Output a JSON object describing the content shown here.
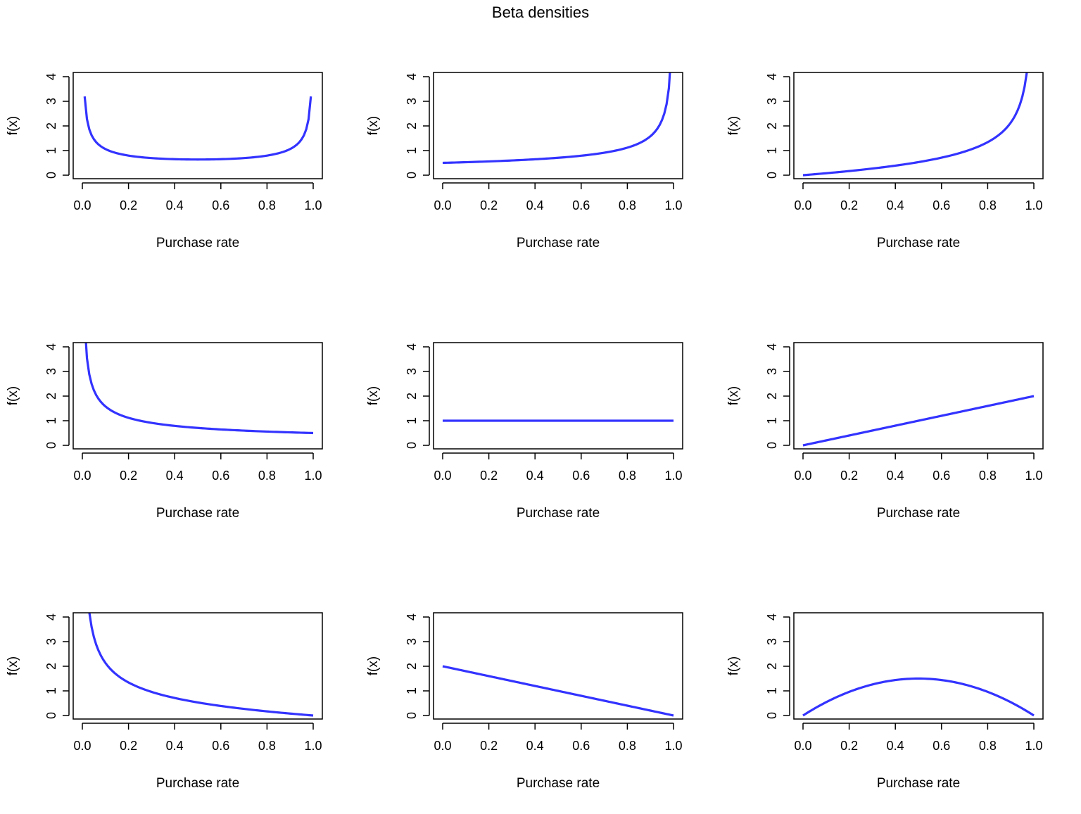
{
  "title": "Beta densities",
  "chart_data": [
    {
      "type": "line",
      "alpha": 0.5,
      "beta": 0.5,
      "xlabel": "Purchase rate",
      "ylabel": "f(x)",
      "xlim": [
        0,
        1
      ],
      "ylim": [
        0,
        4
      ],
      "xticks": [
        "0.0",
        "0.2",
        "0.4",
        "0.6",
        "0.8",
        "1.0"
      ],
      "yticks": [
        "0",
        "1",
        "2",
        "3",
        "4"
      ],
      "x_step": 0.01
    },
    {
      "type": "line",
      "alpha": 1,
      "beta": 0.5,
      "xlabel": "Purchase rate",
      "ylabel": "f(x)",
      "xlim": [
        0,
        1
      ],
      "ylim": [
        0,
        4
      ],
      "xticks": [
        "0.0",
        "0.2",
        "0.4",
        "0.6",
        "0.8",
        "1.0"
      ],
      "yticks": [
        "0",
        "1",
        "2",
        "3",
        "4"
      ],
      "x_step": 0.01
    },
    {
      "type": "line",
      "alpha": 2,
      "beta": 0.5,
      "xlabel": "Purchase rate",
      "ylabel": "f(x)",
      "xlim": [
        0,
        1
      ],
      "ylim": [
        0,
        4
      ],
      "xticks": [
        "0.0",
        "0.2",
        "0.4",
        "0.6",
        "0.8",
        "1.0"
      ],
      "yticks": [
        "0",
        "1",
        "2",
        "3",
        "4"
      ],
      "x_step": 0.01
    },
    {
      "type": "line",
      "alpha": 0.5,
      "beta": 1,
      "xlabel": "Purchase rate",
      "ylabel": "f(x)",
      "xlim": [
        0,
        1
      ],
      "ylim": [
        0,
        4
      ],
      "xticks": [
        "0.0",
        "0.2",
        "0.4",
        "0.6",
        "0.8",
        "1.0"
      ],
      "yticks": [
        "0",
        "1",
        "2",
        "3",
        "4"
      ],
      "x_step": 0.01
    },
    {
      "type": "line",
      "alpha": 1,
      "beta": 1,
      "xlabel": "Purchase rate",
      "ylabel": "f(x)",
      "xlim": [
        0,
        1
      ],
      "ylim": [
        0,
        4
      ],
      "xticks": [
        "0.0",
        "0.2",
        "0.4",
        "0.6",
        "0.8",
        "1.0"
      ],
      "yticks": [
        "0",
        "1",
        "2",
        "3",
        "4"
      ],
      "x_step": 0.01
    },
    {
      "type": "line",
      "alpha": 2,
      "beta": 1,
      "xlabel": "Purchase rate",
      "ylabel": "f(x)",
      "xlim": [
        0,
        1
      ],
      "ylim": [
        0,
        4
      ],
      "xticks": [
        "0.0",
        "0.2",
        "0.4",
        "0.6",
        "0.8",
        "1.0"
      ],
      "yticks": [
        "0",
        "1",
        "2",
        "3",
        "4"
      ],
      "x_step": 0.01
    },
    {
      "type": "line",
      "alpha": 0.5,
      "beta": 2,
      "xlabel": "Purchase rate",
      "ylabel": "f(x)",
      "xlim": [
        0,
        1
      ],
      "ylim": [
        0,
        4
      ],
      "xticks": [
        "0.0",
        "0.2",
        "0.4",
        "0.6",
        "0.8",
        "1.0"
      ],
      "yticks": [
        "0",
        "1",
        "2",
        "3",
        "4"
      ],
      "x_step": 0.01
    },
    {
      "type": "line",
      "alpha": 1,
      "beta": 2,
      "xlabel": "Purchase rate",
      "ylabel": "f(x)",
      "xlim": [
        0,
        1
      ],
      "ylim": [
        0,
        4
      ],
      "xticks": [
        "0.0",
        "0.2",
        "0.4",
        "0.6",
        "0.8",
        "1.0"
      ],
      "yticks": [
        "0",
        "1",
        "2",
        "3",
        "4"
      ],
      "x_step": 0.01
    },
    {
      "type": "line",
      "alpha": 2,
      "beta": 2,
      "xlabel": "Purchase rate",
      "ylabel": "f(x)",
      "xlim": [
        0,
        1
      ],
      "ylim": [
        0,
        4
      ],
      "xticks": [
        "0.0",
        "0.2",
        "0.4",
        "0.6",
        "0.8",
        "1.0"
      ],
      "yticks": [
        "0",
        "1",
        "2",
        "3",
        "4"
      ],
      "x_step": 0.01
    }
  ],
  "colors": {
    "line": "#3333ff",
    "axis": "#000000"
  }
}
